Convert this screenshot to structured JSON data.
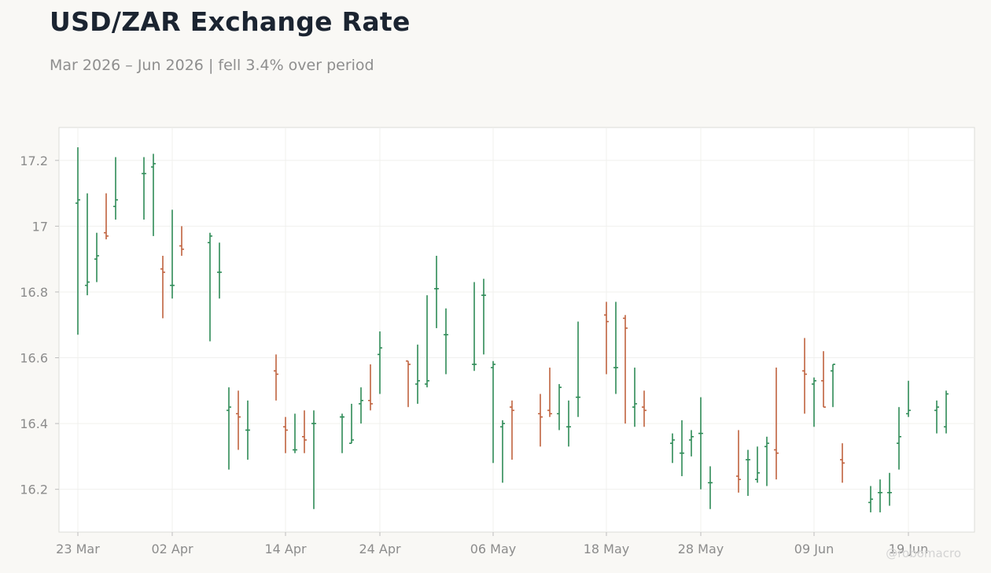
{
  "header": {
    "title": "USD/ZAR Exchange Rate",
    "subtitle": "Mar 2026 – Jun 2026 | fell 3.4% over period"
  },
  "credit": "@robomacro",
  "chart_data": {
    "type": "ohlc",
    "title": "USD/ZAR Exchange Rate",
    "subtitle": "Mar 2026 – Jun 2026 | fell 3.4% over period",
    "xlabel": "",
    "ylabel": "",
    "ylim": [
      16.07,
      17.3
    ],
    "xlim": [
      "2026-03-21",
      "2026-06-26"
    ],
    "y_ticks": [
      16.2,
      16.4,
      16.6,
      16.8,
      17.0,
      17.2
    ],
    "y_tick_labels": [
      "16.2",
      "16.4",
      "16.6",
      "16.8",
      "17",
      "17.2"
    ],
    "x_ticks": [
      "2026-03-23",
      "2026-04-02",
      "2026-04-14",
      "2026-04-24",
      "2026-05-06",
      "2026-05-18",
      "2026-05-28",
      "2026-06-09",
      "2026-06-19"
    ],
    "x_tick_labels": [
      "23 Mar",
      "02 Apr",
      "14 Apr",
      "24 Apr",
      "06 May",
      "18 May",
      "28 May",
      "09 Jun",
      "19 Jun"
    ],
    "grid": true,
    "colors": {
      "up": "#2e8b57",
      "down": "#c0623e"
    },
    "dates": [
      "2026-03-23",
      "2026-03-24",
      "2026-03-25",
      "2026-03-26",
      "2026-03-27",
      "2026-03-30",
      "2026-03-31",
      "2026-04-01",
      "2026-04-02",
      "2026-04-03",
      "2026-04-06",
      "2026-04-07",
      "2026-04-08",
      "2026-04-09",
      "2026-04-10",
      "2026-04-13",
      "2026-04-14",
      "2026-04-15",
      "2026-04-16",
      "2026-04-17",
      "2026-04-20",
      "2026-04-21",
      "2026-04-22",
      "2026-04-23",
      "2026-04-24",
      "2026-04-27",
      "2026-04-28",
      "2026-04-29",
      "2026-04-30",
      "2026-05-01",
      "2026-05-04",
      "2026-05-05",
      "2026-05-06",
      "2026-05-07",
      "2026-05-08",
      "2026-05-11",
      "2026-05-12",
      "2026-05-13",
      "2026-05-14",
      "2026-05-15",
      "2026-05-18",
      "2026-05-19",
      "2026-05-20",
      "2026-05-21",
      "2026-05-22",
      "2026-05-25",
      "2026-05-26",
      "2026-05-27",
      "2026-05-28",
      "2026-05-29",
      "2026-06-01",
      "2026-06-02",
      "2026-06-03",
      "2026-06-04",
      "2026-06-05",
      "2026-06-08",
      "2026-06-09",
      "2026-06-10",
      "2026-06-11",
      "2026-06-12",
      "2026-06-15",
      "2026-06-16",
      "2026-06-17",
      "2026-06-18",
      "2026-06-19",
      "2026-06-22",
      "2026-06-23"
    ],
    "open": [
      17.07,
      16.82,
      16.9,
      16.98,
      17.06,
      17.16,
      17.18,
      16.87,
      16.82,
      16.94,
      16.95,
      16.86,
      16.44,
      16.43,
      16.38,
      16.56,
      16.39,
      16.32,
      16.36,
      16.4,
      16.42,
      16.34,
      16.46,
      16.47,
      16.61,
      16.59,
      16.52,
      16.52,
      16.81,
      16.67,
      16.58,
      16.79,
      16.57,
      16.39,
      16.45,
      16.43,
      16.44,
      16.43,
      16.39,
      16.48,
      16.73,
      16.57,
      16.72,
      16.45,
      16.45,
      16.34,
      16.31,
      16.35,
      16.37,
      16.22,
      16.24,
      16.29,
      16.23,
      16.33,
      16.32,
      16.56,
      16.52,
      16.53,
      16.56,
      16.29,
      16.16,
      16.19,
      16.19,
      16.34,
      16.43,
      16.44,
      16.39
    ],
    "high": [
      17.24,
      17.1,
      16.98,
      17.1,
      17.21,
      17.21,
      17.22,
      16.91,
      17.05,
      17.0,
      16.98,
      16.95,
      16.51,
      16.5,
      16.47,
      16.61,
      16.42,
      16.43,
      16.44,
      16.44,
      16.43,
      16.46,
      16.51,
      16.58,
      16.68,
      16.59,
      16.64,
      16.79,
      16.91,
      16.75,
      16.83,
      16.84,
      16.59,
      16.41,
      16.47,
      16.49,
      16.57,
      16.52,
      16.47,
      16.71,
      16.77,
      16.77,
      16.73,
      16.57,
      16.5,
      16.37,
      16.41,
      16.38,
      16.48,
      16.27,
      16.38,
      16.32,
      16.33,
      16.36,
      16.57,
      16.66,
      16.54,
      16.62,
      16.58,
      16.34,
      16.21,
      16.23,
      16.25,
      16.45,
      16.53,
      16.47,
      16.5
    ],
    "low": [
      16.67,
      16.79,
      16.83,
      16.96,
      17.02,
      17.02,
      16.97,
      16.72,
      16.78,
      16.91,
      16.65,
      16.78,
      16.26,
      16.32,
      16.29,
      16.47,
      16.31,
      16.31,
      16.31,
      16.14,
      16.31,
      16.34,
      16.4,
      16.44,
      16.49,
      16.45,
      16.46,
      16.51,
      16.69,
      16.55,
      16.56,
      16.61,
      16.28,
      16.22,
      16.29,
      16.33,
      16.42,
      16.38,
      16.33,
      16.42,
      16.55,
      16.49,
      16.4,
      16.39,
      16.39,
      16.28,
      16.24,
      16.3,
      16.2,
      16.14,
      16.19,
      16.18,
      16.22,
      16.21,
      16.23,
      16.43,
      16.39,
      16.45,
      16.45,
      16.22,
      16.13,
      16.13,
      16.15,
      16.26,
      16.42,
      16.37,
      16.37
    ],
    "close": [
      17.08,
      16.83,
      16.91,
      16.97,
      17.08,
      17.16,
      17.19,
      16.86,
      16.82,
      16.93,
      16.97,
      16.86,
      16.45,
      16.42,
      16.38,
      16.55,
      16.38,
      16.32,
      16.35,
      16.4,
      16.42,
      16.35,
      16.47,
      16.46,
      16.63,
      16.58,
      16.53,
      16.53,
      16.81,
      16.67,
      16.58,
      16.79,
      16.58,
      16.4,
      16.44,
      16.42,
      16.43,
      16.51,
      16.39,
      16.48,
      16.71,
      16.57,
      16.69,
      16.46,
      16.44,
      16.35,
      16.31,
      16.36,
      16.37,
      16.22,
      16.23,
      16.29,
      16.25,
      16.34,
      16.31,
      16.55,
      16.53,
      16.45,
      16.58,
      16.28,
      16.17,
      16.19,
      16.19,
      16.36,
      16.44,
      16.45,
      16.49
    ]
  }
}
